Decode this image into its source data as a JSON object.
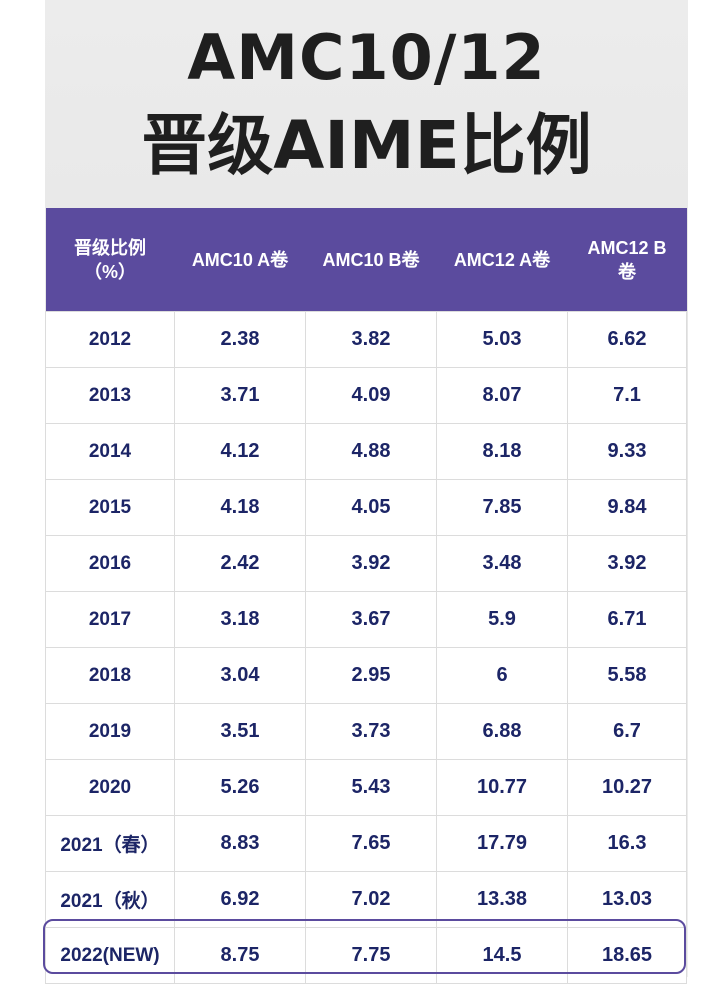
{
  "title": {
    "line1": "AMC10/12",
    "line2": "晋级AIME比例"
  },
  "table": {
    "headers": [
      "晋级比例\n（%）",
      "AMC10 A卷",
      "AMC10 B卷",
      "AMC12 A卷",
      "AMC12 B\n卷"
    ],
    "rows": [
      [
        "2012",
        "2.38",
        "3.82",
        "5.03",
        "6.62"
      ],
      [
        "2013",
        "3.71",
        "4.09",
        "8.07",
        "7.1"
      ],
      [
        "2014",
        "4.12",
        "4.88",
        "8.18",
        "9.33"
      ],
      [
        "2015",
        "4.18",
        "4.05",
        "7.85",
        "9.84"
      ],
      [
        "2016",
        "2.42",
        "3.92",
        "3.48",
        "3.92"
      ],
      [
        "2017",
        "3.18",
        "3.67",
        "5.9",
        "6.71"
      ],
      [
        "2018",
        "3.04",
        "2.95",
        "6",
        "5.58"
      ],
      [
        "2019",
        "3.51",
        "3.73",
        "6.88",
        "6.7"
      ],
      [
        "2020",
        "5.26",
        "5.43",
        "10.77",
        "10.27"
      ],
      [
        "2021（春）",
        "8.83",
        "7.65",
        "17.79",
        "16.3"
      ],
      [
        "2021（秋）",
        "6.92",
        "7.02",
        "13.38",
        "13.03"
      ],
      [
        "2022(NEW)",
        "8.75",
        "7.75",
        "14.5",
        "18.65"
      ]
    ],
    "highlight_row": 11
  },
  "colors": {
    "header_bg": "#5b4b9e",
    "cell_text": "#1c2566",
    "title_text": "#1f1f1f"
  }
}
